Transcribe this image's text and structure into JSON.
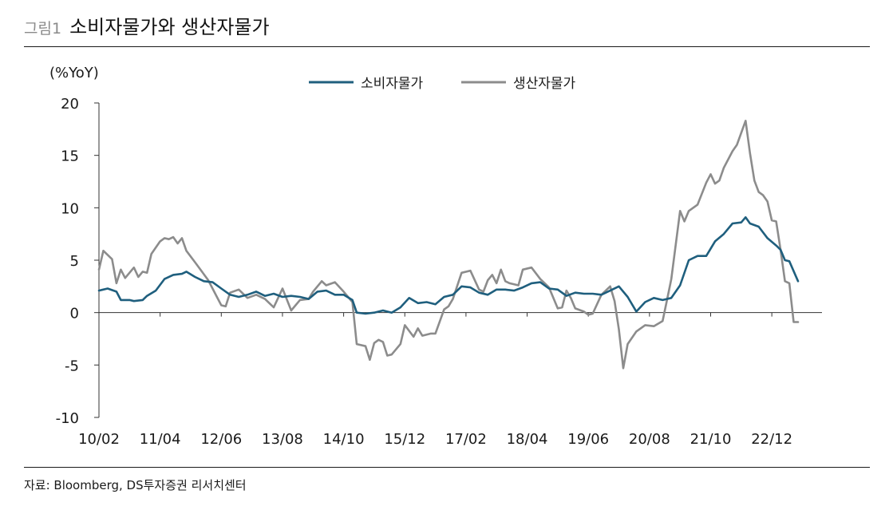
{
  "header": {
    "figure_number": "그림1",
    "title": "소비자물가와 생산자물가"
  },
  "footer": {
    "source": "자료: Bloomberg, DS투자증권 리서치센터"
  },
  "colors": {
    "cpi": "#1f5f7e",
    "ppi": "#8c8c8c",
    "axis": "#333333"
  },
  "chart_data": {
    "type": "line",
    "ylabel": "(%YoY)",
    "ylim": [
      -10,
      20
    ],
    "yticks": [
      20,
      15,
      10,
      5,
      0,
      -5,
      -10
    ],
    "xtick_labels": [
      "10/02",
      "11/04",
      "12/06",
      "13/08",
      "14/10",
      "15/12",
      "17/02",
      "18/04",
      "19/06",
      "20/08",
      "21/10",
      "22/12"
    ],
    "x_start": "2010-02",
    "x_end": "2023-06",
    "legend_position": "top",
    "grid": false,
    "series": [
      {
        "name": "소비자물가",
        "key": "cpi",
        "points": [
          [
            "2010-02",
            2.1
          ],
          [
            "2010-04",
            2.3
          ],
          [
            "2010-06",
            2.0
          ],
          [
            "2010-07",
            1.2
          ],
          [
            "2010-09",
            1.2
          ],
          [
            "2010-10",
            1.1
          ],
          [
            "2010-12",
            1.2
          ],
          [
            "2011-01",
            1.6
          ],
          [
            "2011-03",
            2.1
          ],
          [
            "2011-05",
            3.2
          ],
          [
            "2011-07",
            3.6
          ],
          [
            "2011-09",
            3.7
          ],
          [
            "2011-10",
            3.9
          ],
          [
            "2011-12",
            3.4
          ],
          [
            "2012-02",
            3.0
          ],
          [
            "2012-04",
            2.9
          ],
          [
            "2012-06",
            2.3
          ],
          [
            "2012-08",
            1.7
          ],
          [
            "2012-10",
            1.5
          ],
          [
            "2012-12",
            1.7
          ],
          [
            "2013-02",
            2.0
          ],
          [
            "2013-04",
            1.6
          ],
          [
            "2013-06",
            1.8
          ],
          [
            "2013-08",
            1.5
          ],
          [
            "2013-10",
            1.6
          ],
          [
            "2013-12",
            1.5
          ],
          [
            "2014-02",
            1.3
          ],
          [
            "2014-04",
            2.0
          ],
          [
            "2014-06",
            2.1
          ],
          [
            "2014-08",
            1.7
          ],
          [
            "2014-10",
            1.7
          ],
          [
            "2014-12",
            1.2
          ],
          [
            "2015-01",
            0.0
          ],
          [
            "2015-03",
            -0.1
          ],
          [
            "2015-05",
            0.0
          ],
          [
            "2015-07",
            0.2
          ],
          [
            "2015-09",
            0.0
          ],
          [
            "2015-11",
            0.5
          ],
          [
            "2016-01",
            1.4
          ],
          [
            "2016-03",
            0.9
          ],
          [
            "2016-05",
            1.0
          ],
          [
            "2016-07",
            0.8
          ],
          [
            "2016-09",
            1.5
          ],
          [
            "2016-11",
            1.7
          ],
          [
            "2017-01",
            2.5
          ],
          [
            "2017-03",
            2.4
          ],
          [
            "2017-05",
            1.9
          ],
          [
            "2017-07",
            1.7
          ],
          [
            "2017-09",
            2.2
          ],
          [
            "2017-11",
            2.2
          ],
          [
            "2018-01",
            2.1
          ],
          [
            "2018-03",
            2.4
          ],
          [
            "2018-05",
            2.8
          ],
          [
            "2018-07",
            2.9
          ],
          [
            "2018-09",
            2.3
          ],
          [
            "2018-11",
            2.2
          ],
          [
            "2019-01",
            1.6
          ],
          [
            "2019-03",
            1.9
          ],
          [
            "2019-05",
            1.8
          ],
          [
            "2019-07",
            1.8
          ],
          [
            "2019-09",
            1.7
          ],
          [
            "2019-11",
            2.1
          ],
          [
            "2020-01",
            2.5
          ],
          [
            "2020-03",
            1.5
          ],
          [
            "2020-05",
            0.1
          ],
          [
            "2020-07",
            1.0
          ],
          [
            "2020-09",
            1.4
          ],
          [
            "2020-11",
            1.2
          ],
          [
            "2021-01",
            1.4
          ],
          [
            "2021-03",
            2.6
          ],
          [
            "2021-05",
            5.0
          ],
          [
            "2021-07",
            5.4
          ],
          [
            "2021-09",
            5.4
          ],
          [
            "2021-11",
            6.8
          ],
          [
            "2022-01",
            7.5
          ],
          [
            "2022-03",
            8.5
          ],
          [
            "2022-05",
            8.6
          ],
          [
            "2022-06",
            9.1
          ],
          [
            "2022-07",
            8.5
          ],
          [
            "2022-09",
            8.2
          ],
          [
            "2022-11",
            7.1
          ],
          [
            "2023-01",
            6.4
          ],
          [
            "2023-02",
            6.0
          ],
          [
            "2023-03",
            5.0
          ],
          [
            "2023-04",
            4.9
          ],
          [
            "2023-06",
            3.0
          ]
        ]
      },
      {
        "name": "생산자물가",
        "key": "ppi",
        "points": [
          [
            "2010-02",
            4.1
          ],
          [
            "2010-03",
            5.9
          ],
          [
            "2010-05",
            5.1
          ],
          [
            "2010-06",
            2.8
          ],
          [
            "2010-07",
            4.1
          ],
          [
            "2010-08",
            3.3
          ],
          [
            "2010-10",
            4.3
          ],
          [
            "2010-11",
            3.4
          ],
          [
            "2010-12",
            3.9
          ],
          [
            "2011-01",
            3.8
          ],
          [
            "2011-02",
            5.6
          ],
          [
            "2011-04",
            6.8
          ],
          [
            "2011-05",
            7.1
          ],
          [
            "2011-06",
            7.0
          ],
          [
            "2011-07",
            7.2
          ],
          [
            "2011-08",
            6.6
          ],
          [
            "2011-09",
            7.1
          ],
          [
            "2011-10",
            5.9
          ],
          [
            "2011-12",
            4.8
          ],
          [
            "2012-03",
            3.1
          ],
          [
            "2012-05",
            1.5
          ],
          [
            "2012-06",
            0.7
          ],
          [
            "2012-07",
            0.6
          ],
          [
            "2012-08",
            1.9
          ],
          [
            "2012-10",
            2.2
          ],
          [
            "2012-12",
            1.4
          ],
          [
            "2013-02",
            1.7
          ],
          [
            "2013-04",
            1.3
          ],
          [
            "2013-06",
            0.5
          ],
          [
            "2013-08",
            2.3
          ],
          [
            "2013-10",
            0.2
          ],
          [
            "2013-12",
            1.2
          ],
          [
            "2014-02",
            1.3
          ],
          [
            "2014-03",
            2.0
          ],
          [
            "2014-05",
            3.0
          ],
          [
            "2014-06",
            2.6
          ],
          [
            "2014-08",
            2.9
          ],
          [
            "2014-10",
            2.0
          ],
          [
            "2014-12",
            1.0
          ],
          [
            "2015-01",
            -3.0
          ],
          [
            "2015-03",
            -3.2
          ],
          [
            "2015-04",
            -4.5
          ],
          [
            "2015-05",
            -2.9
          ],
          [
            "2015-06",
            -2.6
          ],
          [
            "2015-07",
            -2.8
          ],
          [
            "2015-08",
            -4.1
          ],
          [
            "2015-09",
            -4.0
          ],
          [
            "2015-11",
            -3.0
          ],
          [
            "2015-12",
            -1.2
          ],
          [
            "2016-02",
            -2.3
          ],
          [
            "2016-03",
            -1.5
          ],
          [
            "2016-04",
            -2.2
          ],
          [
            "2016-06",
            -2.0
          ],
          [
            "2016-07",
            -2.0
          ],
          [
            "2016-09",
            0.3
          ],
          [
            "2016-10",
            0.6
          ],
          [
            "2016-11",
            1.3
          ],
          [
            "2017-01",
            3.8
          ],
          [
            "2017-03",
            4.0
          ],
          [
            "2017-05",
            2.2
          ],
          [
            "2017-06",
            2.0
          ],
          [
            "2017-07",
            3.1
          ],
          [
            "2017-08",
            3.6
          ],
          [
            "2017-09",
            2.8
          ],
          [
            "2017-10",
            4.1
          ],
          [
            "2017-11",
            3.0
          ],
          [
            "2017-12",
            2.8
          ],
          [
            "2018-02",
            2.6
          ],
          [
            "2018-03",
            4.1
          ],
          [
            "2018-05",
            4.3
          ],
          [
            "2018-07",
            3.2
          ],
          [
            "2018-09",
            2.4
          ],
          [
            "2018-10",
            1.4
          ],
          [
            "2018-11",
            0.4
          ],
          [
            "2018-12",
            0.5
          ],
          [
            "2019-01",
            2.1
          ],
          [
            "2019-02",
            1.4
          ],
          [
            "2019-03",
            0.4
          ],
          [
            "2019-05",
            0.1
          ],
          [
            "2019-06",
            -0.2
          ],
          [
            "2019-07",
            -0.1
          ],
          [
            "2019-09",
            1.7
          ],
          [
            "2019-11",
            2.5
          ],
          [
            "2019-12",
            1.1
          ],
          [
            "2020-01",
            -1.6
          ],
          [
            "2020-02",
            -5.3
          ],
          [
            "2020-03",
            -3.0
          ],
          [
            "2020-05",
            -1.8
          ],
          [
            "2020-07",
            -1.2
          ],
          [
            "2020-09",
            -1.3
          ],
          [
            "2020-11",
            -0.8
          ],
          [
            "2020-12",
            1.2
          ],
          [
            "2021-01",
            3.2
          ],
          [
            "2021-03",
            9.7
          ],
          [
            "2021-04",
            8.7
          ],
          [
            "2021-05",
            9.7
          ],
          [
            "2021-07",
            10.3
          ],
          [
            "2021-09",
            12.4
          ],
          [
            "2021-10",
            13.2
          ],
          [
            "2021-11",
            12.3
          ],
          [
            "2021-12",
            12.6
          ],
          [
            "2022-01",
            13.8
          ],
          [
            "2022-03",
            15.4
          ],
          [
            "2022-04",
            16.0
          ],
          [
            "2022-06",
            18.3
          ],
          [
            "2022-07",
            15.2
          ],
          [
            "2022-08",
            12.6
          ],
          [
            "2022-09",
            11.5
          ],
          [
            "2022-10",
            11.2
          ],
          [
            "2022-11",
            10.6
          ],
          [
            "2022-12",
            8.8
          ],
          [
            "2023-01",
            8.7
          ],
          [
            "2023-02",
            6.0
          ],
          [
            "2023-03",
            3.0
          ],
          [
            "2023-04",
            2.8
          ],
          [
            "2023-05",
            -0.9
          ],
          [
            "2023-06",
            -0.9
          ]
        ]
      }
    ]
  }
}
